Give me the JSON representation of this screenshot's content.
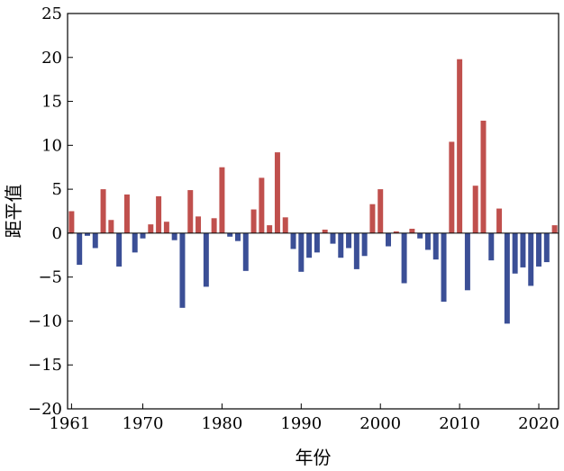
{
  "chart_data": {
    "type": "bar",
    "title": "",
    "xlabel": "年份",
    "ylabel": "距平值",
    "xlim": [
      1960.5,
      2022.5
    ],
    "ylim": [
      -20,
      25
    ],
    "grid": false,
    "legend": "none",
    "x_ticks": [
      {
        "value": 1961,
        "label": "1961"
      },
      {
        "value": 1970,
        "label": "1970"
      },
      {
        "value": 1980,
        "label": "1980"
      },
      {
        "value": 1990,
        "label": "1990"
      },
      {
        "value": 2000,
        "label": "2000"
      },
      {
        "value": 2010,
        "label": "2010"
      },
      {
        "value": 2020,
        "label": "2020"
      }
    ],
    "y_ticks": [
      {
        "value": 25,
        "label": "25"
      },
      {
        "value": 20,
        "label": "20"
      },
      {
        "value": 15,
        "label": "15"
      },
      {
        "value": 10,
        "label": "10"
      },
      {
        "value": 5,
        "label": "5"
      },
      {
        "value": 0,
        "label": "0"
      },
      {
        "value": -5,
        "label": "−5"
      },
      {
        "value": -10,
        "label": "−10"
      },
      {
        "value": -15,
        "label": "−15"
      },
      {
        "value": -20,
        "label": "−20"
      }
    ],
    "colors": {
      "positive": "#c0504d",
      "negative": "#3b4f96"
    },
    "years": [
      1961,
      1962,
      1963,
      1964,
      1965,
      1966,
      1967,
      1968,
      1969,
      1970,
      1971,
      1972,
      1973,
      1974,
      1975,
      1976,
      1977,
      1978,
      1979,
      1980,
      1981,
      1982,
      1983,
      1984,
      1985,
      1986,
      1987,
      1988,
      1989,
      1990,
      1991,
      1992,
      1993,
      1994,
      1995,
      1996,
      1997,
      1998,
      1999,
      2000,
      2001,
      2002,
      2003,
      2004,
      2005,
      2006,
      2007,
      2008,
      2009,
      2010,
      2011,
      2012,
      2013,
      2014,
      2015,
      2016,
      2017,
      2018,
      2019,
      2020,
      2021,
      2022
    ],
    "values": [
      2.5,
      -3.6,
      -0.3,
      -1.7,
      5.0,
      1.5,
      -3.8,
      4.4,
      -2.2,
      -0.6,
      1.0,
      4.2,
      1.3,
      -0.8,
      -8.5,
      4.9,
      1.9,
      -6.1,
      1.7,
      7.5,
      -0.4,
      -0.9,
      -4.3,
      2.7,
      6.3,
      0.9,
      9.2,
      1.8,
      -1.8,
      -4.4,
      -2.8,
      -2.2,
      0.4,
      -1.2,
      -2.8,
      -1.7,
      -4.1,
      -2.6,
      3.3,
      5.0,
      -1.5,
      0.2,
      -5.7,
      0.5,
      -0.6,
      -1.9,
      -3.0,
      -7.8,
      10.4,
      19.8,
      -6.5,
      5.4,
      12.8,
      -3.1,
      2.8,
      -10.3,
      -4.6,
      -3.9,
      -6.0,
      -3.8,
      -3.3,
      0.9
    ]
  }
}
